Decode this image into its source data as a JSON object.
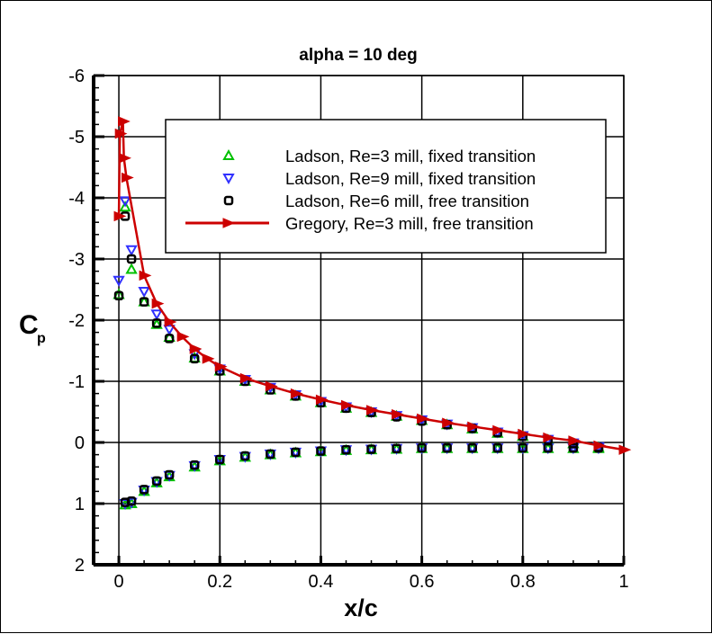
{
  "chart_data": {
    "type": "scatter",
    "title": "alpha = 10 deg",
    "xlabel": "x/c",
    "ylabel": "C",
    "ylabel_sub": "p",
    "xlim": [
      -0.05,
      1.0
    ],
    "ylim": [
      2,
      -6
    ],
    "y_inverted": true,
    "grid": true,
    "legend_placement": "top-right",
    "x_ticks": [
      "0",
      "0.2",
      "0.4",
      "0.6",
      "0.8",
      "1"
    ],
    "x_tick_values": [
      0,
      0.2,
      0.4,
      0.6,
      0.8,
      1
    ],
    "y_ticks": [
      "-6",
      "-5",
      "-4",
      "-3",
      "-2",
      "-1",
      "0",
      "1",
      "2"
    ],
    "y_tick_values": [
      -6,
      -5,
      -4,
      -3,
      -2,
      -1,
      0,
      1,
      2
    ],
    "series": [
      {
        "name": "Ladson, Re=3 mill, fixed transition",
        "marker": "triangle-up",
        "color": "#00c000",
        "line": false,
        "x": [
          0,
          0.0125,
          0.025,
          0.05,
          0.075,
          0.1,
          0.15,
          0.2,
          0.25,
          0.3,
          0.35,
          0.4,
          0.45,
          0.5,
          0.55,
          0.6,
          0.65,
          0.7,
          0.75,
          0.8,
          0.85,
          0.9,
          0.95,
          0.0125,
          0.025,
          0.05,
          0.075,
          0.1,
          0.15,
          0.2,
          0.25,
          0.3,
          0.35,
          0.4,
          0.45,
          0.5,
          0.55,
          0.6,
          0.65,
          0.7,
          0.75,
          0.8,
          0.85,
          0.9,
          0.95
        ],
        "y": [
          -2.42,
          -3.85,
          -2.83,
          -2.3,
          -1.93,
          -1.72,
          -1.38,
          -1.17,
          -1.0,
          -0.86,
          -0.76,
          -0.65,
          -0.56,
          -0.49,
          -0.43,
          -0.36,
          -0.29,
          -0.22,
          -0.15,
          -0.1,
          -0.04,
          0.02,
          0.08,
          1.02,
          1.0,
          0.8,
          0.66,
          0.56,
          0.4,
          0.3,
          0.24,
          0.2,
          0.17,
          0.15,
          0.13,
          0.12,
          0.11,
          0.1,
          0.1,
          0.1,
          0.1,
          0.1,
          0.1,
          0.1,
          0.1
        ]
      },
      {
        "name": "Ladson, Re=9 mill, fixed transition",
        "marker": "triangle-down",
        "color": "#3030ff",
        "line": false,
        "x": [
          0,
          0.0125,
          0.025,
          0.05,
          0.075,
          0.1,
          0.15,
          0.2,
          0.25,
          0.3,
          0.35,
          0.4,
          0.45,
          0.5,
          0.55,
          0.6,
          0.65,
          0.7,
          0.75,
          0.8,
          0.85,
          0.9,
          0.95,
          0.0125,
          0.025,
          0.05,
          0.075,
          0.1,
          0.15,
          0.2,
          0.25,
          0.3,
          0.35,
          0.4,
          0.45,
          0.5,
          0.55,
          0.6,
          0.65,
          0.7,
          0.75,
          0.8,
          0.85,
          0.9,
          0.95
        ],
        "y": [
          -2.65,
          -3.95,
          -3.15,
          -2.47,
          -2.1,
          -1.85,
          -1.45,
          -1.2,
          -1.03,
          -0.9,
          -0.78,
          -0.67,
          -0.58,
          -0.5,
          -0.44,
          -0.37,
          -0.3,
          -0.24,
          -0.17,
          -0.11,
          -0.05,
          0.01,
          0.07,
          1.0,
          0.98,
          0.78,
          0.64,
          0.54,
          0.38,
          0.28,
          0.23,
          0.19,
          0.16,
          0.14,
          0.12,
          0.11,
          0.1,
          0.09,
          0.09,
          0.09,
          0.09,
          0.09,
          0.09,
          0.09,
          0.09
        ]
      },
      {
        "name": "Ladson, Re=6 mill, free transition",
        "marker": "square",
        "color": "#000000",
        "line": false,
        "x": [
          0,
          0.0125,
          0.025,
          0.05,
          0.075,
          0.1,
          0.15,
          0.2,
          0.25,
          0.3,
          0.35,
          0.4,
          0.45,
          0.5,
          0.55,
          0.6,
          0.65,
          0.7,
          0.75,
          0.8,
          0.85,
          0.9,
          0.95,
          0.0125,
          0.025,
          0.05,
          0.075,
          0.1,
          0.15,
          0.2,
          0.25,
          0.3,
          0.35,
          0.4,
          0.45,
          0.5,
          0.55,
          0.6,
          0.65,
          0.7,
          0.75,
          0.8,
          0.85,
          0.9,
          0.95
        ],
        "y": [
          -2.4,
          -3.7,
          -3.0,
          -2.3,
          -1.95,
          -1.7,
          -1.37,
          -1.17,
          -1.0,
          -0.86,
          -0.76,
          -0.65,
          -0.56,
          -0.49,
          -0.42,
          -0.35,
          -0.29,
          -0.23,
          -0.16,
          -0.1,
          -0.04,
          0.02,
          0.08,
          0.98,
          0.96,
          0.77,
          0.63,
          0.53,
          0.37,
          0.28,
          0.22,
          0.19,
          0.16,
          0.14,
          0.12,
          0.11,
          0.1,
          0.09,
          0.09,
          0.09,
          0.09,
          0.09,
          0.09,
          0.09,
          0.09
        ]
      },
      {
        "name": "Gregory, Re=3 mill, free transition",
        "marker": "triangle-right",
        "color": "#cc0000",
        "line": true,
        "x": [
          0,
          0.002,
          0.008,
          0.01,
          0.015,
          0.05,
          0.075,
          0.1,
          0.125,
          0.15,
          0.175,
          0.2,
          0.25,
          0.3,
          0.35,
          0.4,
          0.45,
          0.5,
          0.55,
          0.6,
          0.65,
          0.7,
          0.75,
          0.8,
          0.85,
          0.9,
          0.95,
          1.0
        ],
        "y": [
          -3.7,
          -5.05,
          -5.25,
          -4.65,
          -4.33,
          -2.73,
          -2.27,
          -1.97,
          -1.73,
          -1.53,
          -1.37,
          -1.24,
          -1.05,
          -0.92,
          -0.8,
          -0.7,
          -0.61,
          -0.53,
          -0.46,
          -0.39,
          -0.32,
          -0.26,
          -0.2,
          -0.14,
          -0.08,
          -0.03,
          0.05,
          0.12
        ]
      }
    ]
  }
}
